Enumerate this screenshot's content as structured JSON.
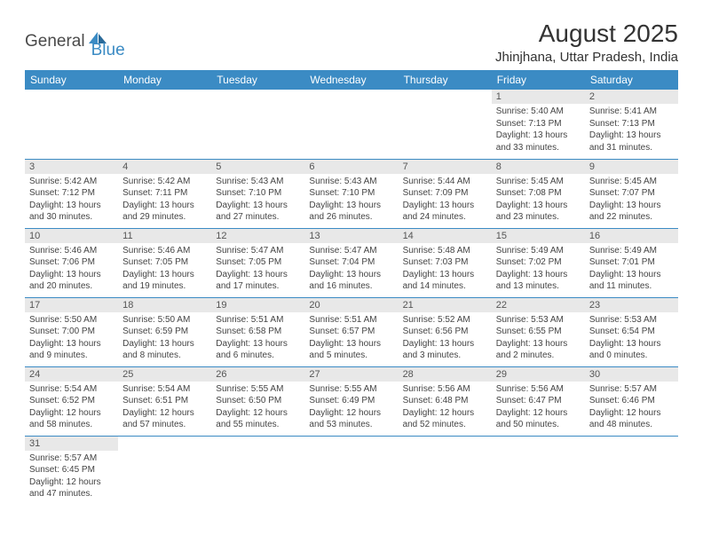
{
  "logo": {
    "part1": "General",
    "part2": "Blue"
  },
  "title": "August 2025",
  "location": "Jhinjhana, Uttar Pradesh, India",
  "day_headers": [
    "Sunday",
    "Monday",
    "Tuesday",
    "Wednesday",
    "Thursday",
    "Friday",
    "Saturday"
  ],
  "colors": {
    "header_bg": "#3b8bc4",
    "header_text": "#ffffff",
    "daynum_bg": "#e8e8e8",
    "border": "#3b8bc4",
    "logo_blue": "#3b8bc4",
    "logo_gray": "#4a4a4a"
  },
  "weeks": [
    [
      null,
      null,
      null,
      null,
      null,
      {
        "n": "1",
        "sr": "Sunrise: 5:40 AM",
        "ss": "Sunset: 7:13 PM",
        "dl": "Daylight: 13 hours and 33 minutes."
      },
      {
        "n": "2",
        "sr": "Sunrise: 5:41 AM",
        "ss": "Sunset: 7:13 PM",
        "dl": "Daylight: 13 hours and 31 minutes."
      }
    ],
    [
      {
        "n": "3",
        "sr": "Sunrise: 5:42 AM",
        "ss": "Sunset: 7:12 PM",
        "dl": "Daylight: 13 hours and 30 minutes."
      },
      {
        "n": "4",
        "sr": "Sunrise: 5:42 AM",
        "ss": "Sunset: 7:11 PM",
        "dl": "Daylight: 13 hours and 29 minutes."
      },
      {
        "n": "5",
        "sr": "Sunrise: 5:43 AM",
        "ss": "Sunset: 7:10 PM",
        "dl": "Daylight: 13 hours and 27 minutes."
      },
      {
        "n": "6",
        "sr": "Sunrise: 5:43 AM",
        "ss": "Sunset: 7:10 PM",
        "dl": "Daylight: 13 hours and 26 minutes."
      },
      {
        "n": "7",
        "sr": "Sunrise: 5:44 AM",
        "ss": "Sunset: 7:09 PM",
        "dl": "Daylight: 13 hours and 24 minutes."
      },
      {
        "n": "8",
        "sr": "Sunrise: 5:45 AM",
        "ss": "Sunset: 7:08 PM",
        "dl": "Daylight: 13 hours and 23 minutes."
      },
      {
        "n": "9",
        "sr": "Sunrise: 5:45 AM",
        "ss": "Sunset: 7:07 PM",
        "dl": "Daylight: 13 hours and 22 minutes."
      }
    ],
    [
      {
        "n": "10",
        "sr": "Sunrise: 5:46 AM",
        "ss": "Sunset: 7:06 PM",
        "dl": "Daylight: 13 hours and 20 minutes."
      },
      {
        "n": "11",
        "sr": "Sunrise: 5:46 AM",
        "ss": "Sunset: 7:05 PM",
        "dl": "Daylight: 13 hours and 19 minutes."
      },
      {
        "n": "12",
        "sr": "Sunrise: 5:47 AM",
        "ss": "Sunset: 7:05 PM",
        "dl": "Daylight: 13 hours and 17 minutes."
      },
      {
        "n": "13",
        "sr": "Sunrise: 5:47 AM",
        "ss": "Sunset: 7:04 PM",
        "dl": "Daylight: 13 hours and 16 minutes."
      },
      {
        "n": "14",
        "sr": "Sunrise: 5:48 AM",
        "ss": "Sunset: 7:03 PM",
        "dl": "Daylight: 13 hours and 14 minutes."
      },
      {
        "n": "15",
        "sr": "Sunrise: 5:49 AM",
        "ss": "Sunset: 7:02 PM",
        "dl": "Daylight: 13 hours and 13 minutes."
      },
      {
        "n": "16",
        "sr": "Sunrise: 5:49 AM",
        "ss": "Sunset: 7:01 PM",
        "dl": "Daylight: 13 hours and 11 minutes."
      }
    ],
    [
      {
        "n": "17",
        "sr": "Sunrise: 5:50 AM",
        "ss": "Sunset: 7:00 PM",
        "dl": "Daylight: 13 hours and 9 minutes."
      },
      {
        "n": "18",
        "sr": "Sunrise: 5:50 AM",
        "ss": "Sunset: 6:59 PM",
        "dl": "Daylight: 13 hours and 8 minutes."
      },
      {
        "n": "19",
        "sr": "Sunrise: 5:51 AM",
        "ss": "Sunset: 6:58 PM",
        "dl": "Daylight: 13 hours and 6 minutes."
      },
      {
        "n": "20",
        "sr": "Sunrise: 5:51 AM",
        "ss": "Sunset: 6:57 PM",
        "dl": "Daylight: 13 hours and 5 minutes."
      },
      {
        "n": "21",
        "sr": "Sunrise: 5:52 AM",
        "ss": "Sunset: 6:56 PM",
        "dl": "Daylight: 13 hours and 3 minutes."
      },
      {
        "n": "22",
        "sr": "Sunrise: 5:53 AM",
        "ss": "Sunset: 6:55 PM",
        "dl": "Daylight: 13 hours and 2 minutes."
      },
      {
        "n": "23",
        "sr": "Sunrise: 5:53 AM",
        "ss": "Sunset: 6:54 PM",
        "dl": "Daylight: 13 hours and 0 minutes."
      }
    ],
    [
      {
        "n": "24",
        "sr": "Sunrise: 5:54 AM",
        "ss": "Sunset: 6:52 PM",
        "dl": "Daylight: 12 hours and 58 minutes."
      },
      {
        "n": "25",
        "sr": "Sunrise: 5:54 AM",
        "ss": "Sunset: 6:51 PM",
        "dl": "Daylight: 12 hours and 57 minutes."
      },
      {
        "n": "26",
        "sr": "Sunrise: 5:55 AM",
        "ss": "Sunset: 6:50 PM",
        "dl": "Daylight: 12 hours and 55 minutes."
      },
      {
        "n": "27",
        "sr": "Sunrise: 5:55 AM",
        "ss": "Sunset: 6:49 PM",
        "dl": "Daylight: 12 hours and 53 minutes."
      },
      {
        "n": "28",
        "sr": "Sunrise: 5:56 AM",
        "ss": "Sunset: 6:48 PM",
        "dl": "Daylight: 12 hours and 52 minutes."
      },
      {
        "n": "29",
        "sr": "Sunrise: 5:56 AM",
        "ss": "Sunset: 6:47 PM",
        "dl": "Daylight: 12 hours and 50 minutes."
      },
      {
        "n": "30",
        "sr": "Sunrise: 5:57 AM",
        "ss": "Sunset: 6:46 PM",
        "dl": "Daylight: 12 hours and 48 minutes."
      }
    ],
    [
      {
        "n": "31",
        "sr": "Sunrise: 5:57 AM",
        "ss": "Sunset: 6:45 PM",
        "dl": "Daylight: 12 hours and 47 minutes."
      },
      null,
      null,
      null,
      null,
      null,
      null
    ]
  ]
}
